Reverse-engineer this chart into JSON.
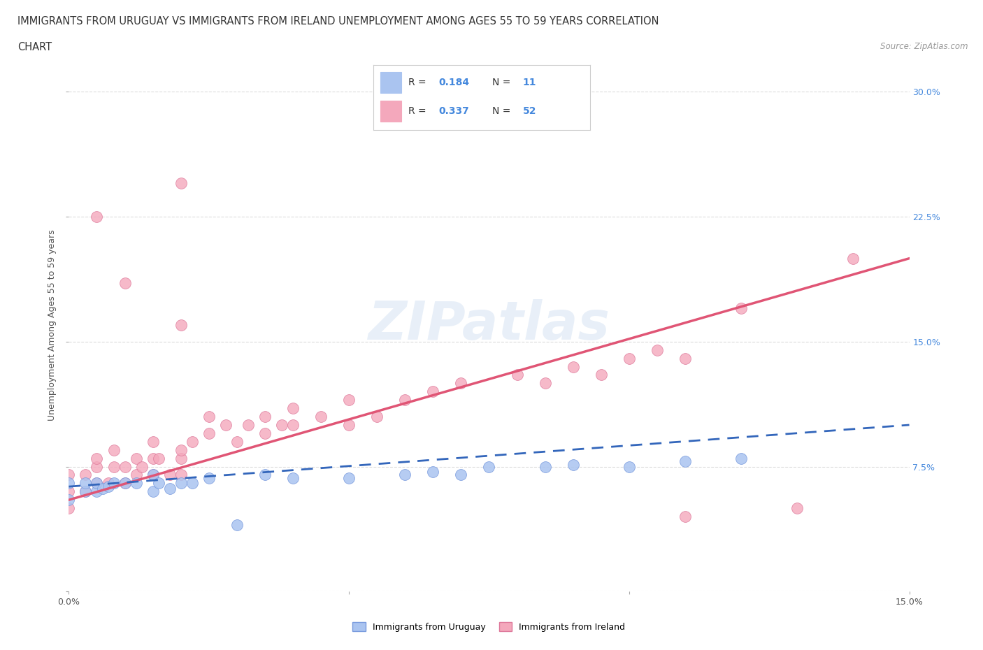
{
  "title_line1": "IMMIGRANTS FROM URUGUAY VS IMMIGRANTS FROM IRELAND UNEMPLOYMENT AMONG AGES 55 TO 59 YEARS CORRELATION",
  "title_line2": "CHART",
  "source": "Source: ZipAtlas.com",
  "ylabel": "Unemployment Among Ages 55 to 59 years",
  "xlim": [
    0.0,
    0.15
  ],
  "ylim": [
    0.0,
    0.32
  ],
  "watermark": "ZIPatlas",
  "uruguay_color": "#aac4f0",
  "ireland_color": "#f4a8bc",
  "uruguay_line_color": "#3366bb",
  "ireland_line_color": "#e05575",
  "uruguay_edge_color": "#7799dd",
  "ireland_edge_color": "#dd7799",
  "grid_color": "#cccccc",
  "bg_color": "#ffffff",
  "title_color": "#333333",
  "axis_label_color": "#555555",
  "right_axis_color": "#4488dd",
  "uruguay_scatter_x": [
    0.0,
    0.0,
    0.003,
    0.003,
    0.005,
    0.005,
    0.006,
    0.007,
    0.008,
    0.01,
    0.012,
    0.015,
    0.015,
    0.016,
    0.018,
    0.02,
    0.022,
    0.025,
    0.03,
    0.035,
    0.04,
    0.05,
    0.06,
    0.065,
    0.07,
    0.075,
    0.085,
    0.09,
    0.1,
    0.11,
    0.12
  ],
  "uruguay_scatter_y": [
    0.055,
    0.065,
    0.06,
    0.065,
    0.06,
    0.065,
    0.062,
    0.063,
    0.065,
    0.065,
    0.065,
    0.06,
    0.07,
    0.065,
    0.062,
    0.065,
    0.065,
    0.068,
    0.04,
    0.07,
    0.068,
    0.068,
    0.07,
    0.072,
    0.07,
    0.075,
    0.075,
    0.076,
    0.075,
    0.078,
    0.08
  ],
  "ireland_scatter_x": [
    0.0,
    0.0,
    0.0,
    0.003,
    0.003,
    0.005,
    0.005,
    0.005,
    0.007,
    0.008,
    0.008,
    0.01,
    0.01,
    0.012,
    0.012,
    0.013,
    0.015,
    0.015,
    0.015,
    0.016,
    0.018,
    0.02,
    0.02,
    0.02,
    0.022,
    0.025,
    0.025,
    0.028,
    0.03,
    0.032,
    0.035,
    0.035,
    0.038,
    0.04,
    0.04,
    0.045,
    0.05,
    0.05,
    0.055,
    0.06,
    0.065,
    0.07,
    0.08,
    0.085,
    0.09,
    0.095,
    0.1,
    0.105,
    0.11,
    0.12,
    0.13,
    0.14
  ],
  "ireland_scatter_y": [
    0.05,
    0.06,
    0.07,
    0.06,
    0.07,
    0.065,
    0.075,
    0.08,
    0.065,
    0.075,
    0.085,
    0.065,
    0.075,
    0.07,
    0.08,
    0.075,
    0.07,
    0.08,
    0.09,
    0.08,
    0.07,
    0.07,
    0.08,
    0.085,
    0.09,
    0.095,
    0.105,
    0.1,
    0.09,
    0.1,
    0.095,
    0.105,
    0.1,
    0.1,
    0.11,
    0.105,
    0.1,
    0.115,
    0.105,
    0.115,
    0.12,
    0.125,
    0.13,
    0.125,
    0.135,
    0.13,
    0.14,
    0.145,
    0.14,
    0.17,
    0.05,
    0.2
  ],
  "ireland_outlier_x": [
    0.02
  ],
  "ireland_outlier_y": [
    0.245
  ],
  "ireland_outlier2_x": [
    0.005
  ],
  "ireland_outlier2_y": [
    0.225
  ],
  "ireland_outlier3_x": [
    0.01
  ],
  "ireland_outlier3_y": [
    0.185
  ],
  "ireland_outlier4_x": [
    0.02
  ],
  "ireland_outlier4_y": [
    0.16
  ]
}
